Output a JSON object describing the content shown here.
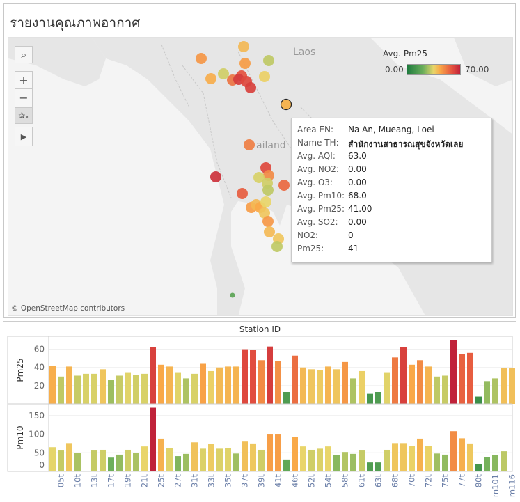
{
  "title": "รายงานคุณภาพอากาศ",
  "map": {
    "labels": {
      "laos": "Laos",
      "thailand": "ailand"
    },
    "attribution": "© OpenStreetMap contributors",
    "tools": [
      "search-icon",
      "zoom-in-icon",
      "zoom-out-icon",
      "unpin-icon",
      "expand-arrow-icon"
    ],
    "legend": {
      "title": "Avg. Pm25",
      "min": "0.00",
      "max": "70.00"
    },
    "tooltip": [
      {
        "key": "Area EN:",
        "value": "Na An, Mueang, Loei"
      },
      {
        "key": "Name TH:",
        "value": "สำนักงานสาธารณสุขจังหวัดเลย"
      },
      {
        "key": "Avg. AQI:",
        "value": "63.0"
      },
      {
        "key": "Avg. NO2:",
        "value": "0.00"
      },
      {
        "key": "Avg. O3:",
        "value": "0.00"
      },
      {
        "key": "Avg. Pm10:",
        "value": "68.0"
      },
      {
        "key": "Avg. Pm25:",
        "value": "41.00"
      },
      {
        "key": "Avg. SO2:",
        "value": "0.00"
      },
      {
        "key": "NO2:",
        "value": "0"
      },
      {
        "key": "Pm25:",
        "value": "41"
      }
    ]
  },
  "chart_data": {
    "type": "bar",
    "title": "Station ID",
    "x_tick_labels": [
      "05t",
      "10t",
      "13t",
      "17t",
      "19t",
      "21t",
      "25t",
      "27t",
      "31t",
      "33t",
      "35t",
      "37t",
      "39t",
      "41t",
      "46t",
      "52t",
      "54t",
      "58t",
      "61t",
      "63t",
      "68t",
      "70t",
      "72t",
      "75t",
      "77t",
      "80t",
      "m101",
      "m116"
    ],
    "series": [
      {
        "name": "Pm25",
        "ylim": [
          0,
          72
        ],
        "ticks": [
          20,
          40,
          60
        ],
        "values": [
          42,
          30,
          41,
          31,
          33,
          33,
          38,
          26,
          31,
          34,
          32,
          33,
          62,
          43,
          41,
          34,
          28,
          33,
          44,
          36,
          40,
          41,
          41,
          60,
          59,
          48,
          63,
          47,
          13,
          53,
          40,
          38,
          37,
          41,
          38,
          46,
          28,
          36,
          11,
          13,
          34,
          51,
          62,
          43,
          48,
          41,
          30,
          31,
          70,
          55,
          56,
          8,
          25,
          28,
          39,
          39
        ]
      },
      {
        "name": "Pm10",
        "ylim": [
          0,
          180
        ],
        "ticks": [
          0,
          50,
          100,
          150
        ],
        "values": [
          65,
          56,
          76,
          50,
          null,
          56,
          58,
          37,
          45,
          58,
          50,
          67,
          171,
          88,
          63,
          41,
          47,
          78,
          61,
          73,
          61,
          63,
          48,
          80,
          75,
          58,
          99,
          99,
          32,
          93,
          67,
          58,
          61,
          67,
          43,
          52,
          47,
          56,
          24,
          24,
          58,
          76,
          76,
          69,
          88,
          69,
          48,
          45,
          108,
          89,
          75,
          19,
          39,
          43,
          54,
          null
        ]
      }
    ],
    "color_scale": {
      "low": "#1e7b3e",
      "mid": "#e9d66a",
      "high": "#c0223a"
    }
  }
}
